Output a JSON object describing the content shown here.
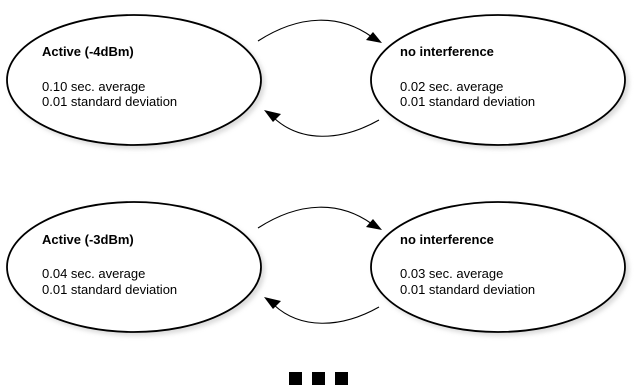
{
  "diagram": {
    "rows": [
      {
        "left": {
          "title": "Active (-4dBm)",
          "line1": "0.10 sec. average",
          "line2": "0.01 standard deviation"
        },
        "right": {
          "title": "no interference",
          "line1": "0.02 sec. average",
          "line2": "0.01 standard deviation"
        }
      },
      {
        "left": {
          "title": "Active (-3dBm)",
          "line1": "0.04 sec. average",
          "line2": "0.01 standard deviation"
        },
        "right": {
          "title": "no interference",
          "line1": "0.03 sec. average",
          "line2": "0.01 standard deviation"
        }
      }
    ]
  }
}
